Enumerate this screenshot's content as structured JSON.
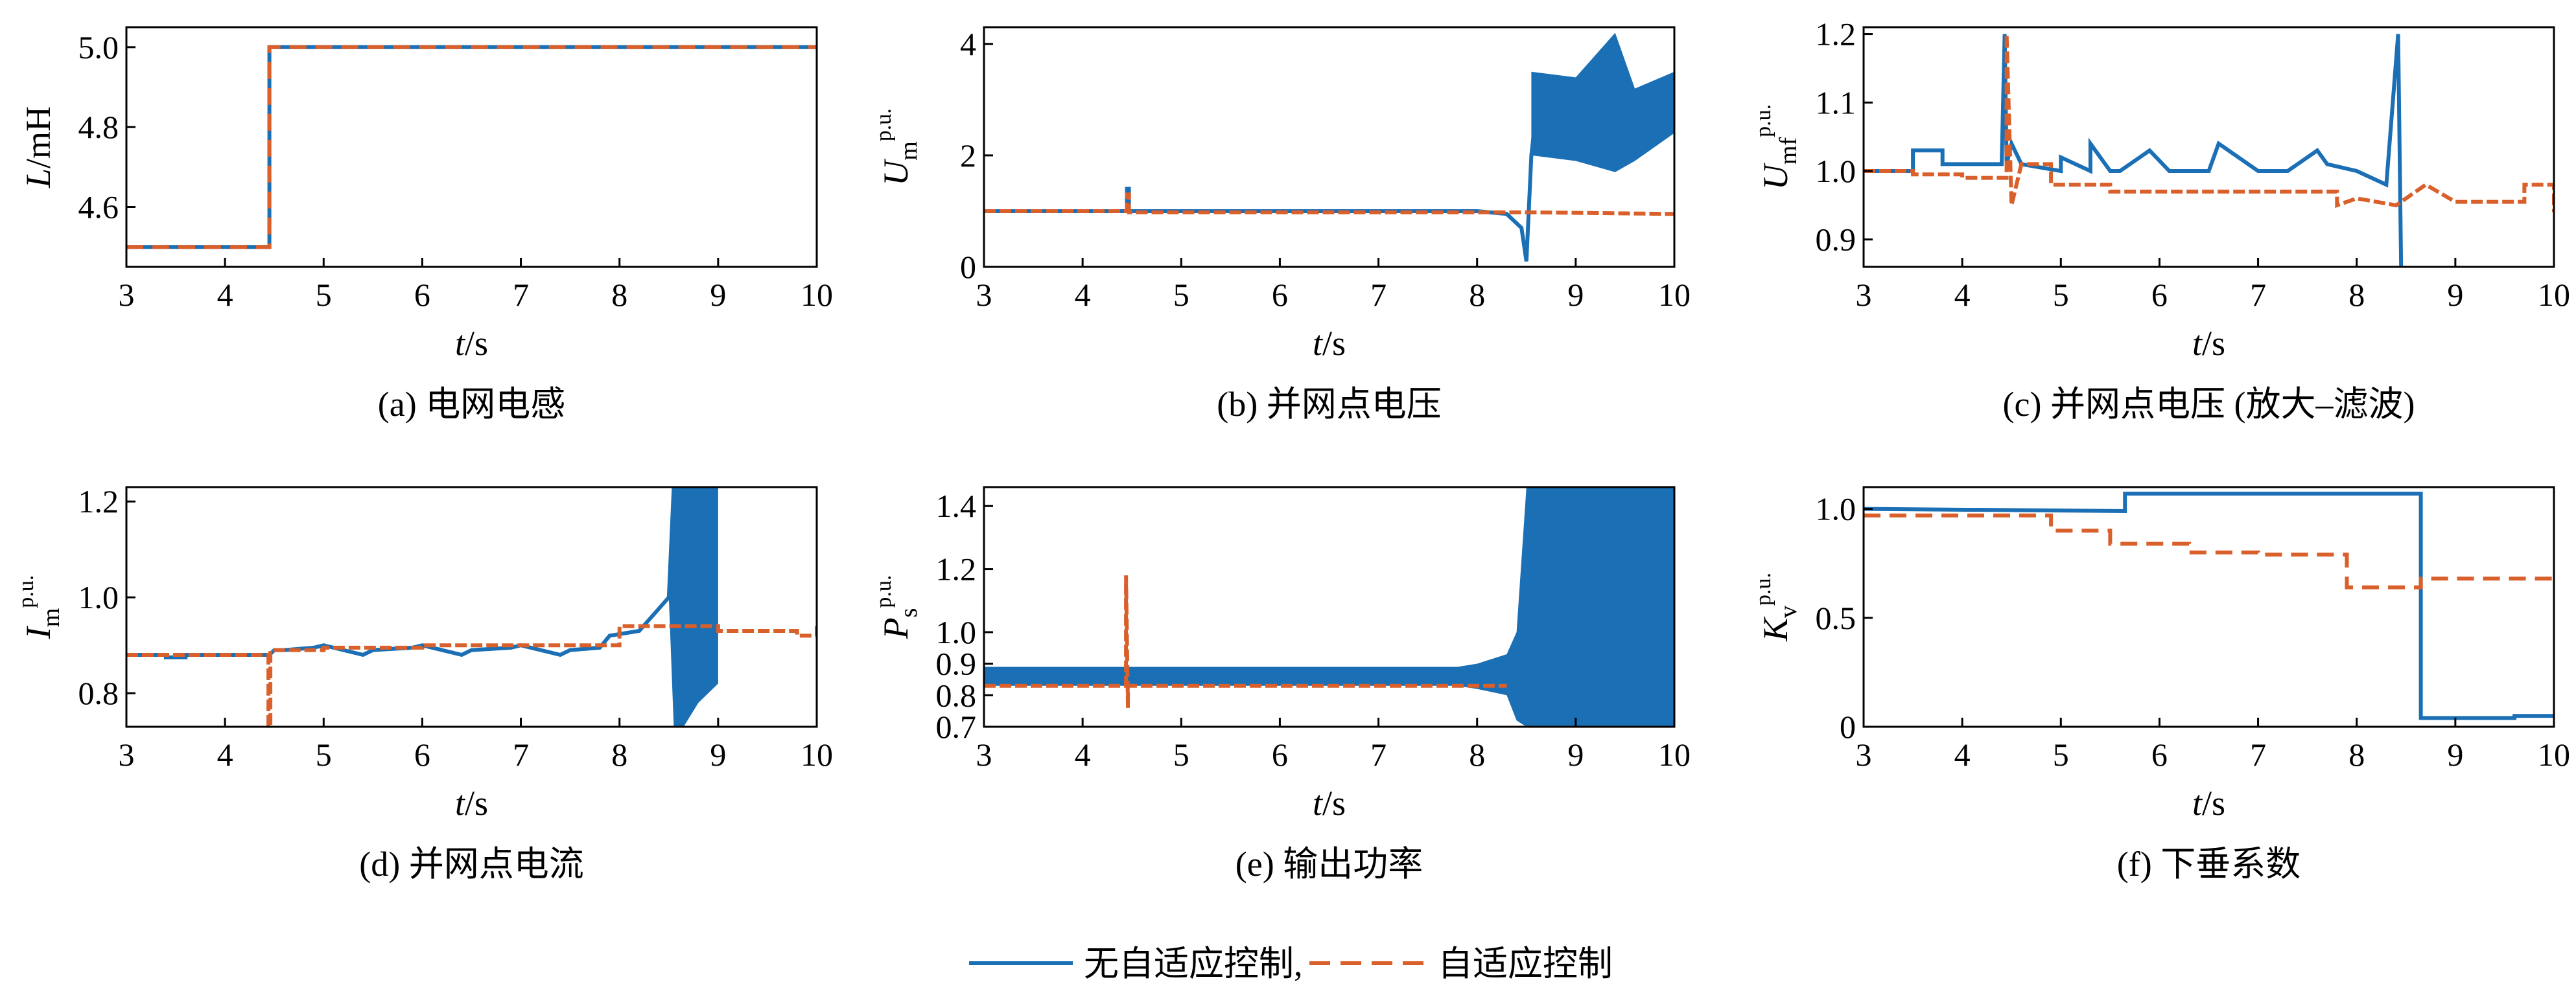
{
  "colors": {
    "no_adaptive": "#1a6fb5",
    "adaptive": "#d95f2b"
  },
  "legend": {
    "no_adaptive": "无自适应控制,",
    "adaptive": "自适应控制"
  },
  "chart_data": [
    {
      "id": "a",
      "type": "line",
      "caption": "(a)  电网电感",
      "ylabel": {
        "sym": "L",
        "sup": "",
        "sub": "",
        "unit": "/mH"
      },
      "xlabel": {
        "sym": "t",
        "unit": "/s"
      },
      "xlim": [
        3,
        10
      ],
      "ylim": [
        4.45,
        5.05
      ],
      "xticks": [
        "3",
        "4",
        "5",
        "6",
        "7",
        "8",
        "9",
        "10"
      ],
      "yticks": [
        {
          "v": 4.6,
          "l": "4.6"
        },
        {
          "v": 4.8,
          "l": "4.8"
        },
        {
          "v": 5.0,
          "l": "5.0"
        }
      ],
      "series": [
        {
          "key": "no_adaptive",
          "x": [
            3,
            4.45,
            4.45,
            10
          ],
          "y": [
            4.5,
            4.5,
            5.0,
            5.0
          ]
        },
        {
          "key": "adaptive",
          "dashed": true,
          "x": [
            3,
            4.45,
            4.45,
            10
          ],
          "y": [
            4.5,
            4.5,
            5.0,
            5.0
          ]
        }
      ]
    },
    {
      "id": "b",
      "type": "line",
      "caption": "(b)  并网点电压",
      "ylabel": {
        "sym": "U",
        "sup": "p.u.",
        "sub": "m",
        "unit": ""
      },
      "xlabel": {
        "sym": "t",
        "unit": "/s"
      },
      "xlim": [
        3,
        10
      ],
      "ylim": [
        0,
        4.3
      ],
      "xticks": [
        "3",
        "4",
        "5",
        "6",
        "7",
        "8",
        "9",
        "10"
      ],
      "yticks": [
        {
          "v": 0,
          "l": "0"
        },
        {
          "v": 2,
          "l": "2"
        },
        {
          "v": 4,
          "l": "4"
        }
      ],
      "series": [
        {
          "key": "no_adaptive",
          "x": [
            3,
            4.45,
            4.45,
            4.47,
            4.47,
            8.0,
            8.3,
            8.45,
            8.5,
            8.55,
            8.6,
            10
          ],
          "y": [
            1.0,
            1.0,
            1.4,
            1.4,
            1.0,
            1.0,
            0.95,
            0.7,
            0.1,
            2.0,
            2.8,
            2.8
          ],
          "bands": [
            {
              "x": [
                8.55,
                9.0,
                9.4,
                9.6,
                10
              ],
              "lo": [
                2.0,
                1.9,
                1.7,
                1.9,
                2.4
              ],
              "hi": [
                3.5,
                3.4,
                4.2,
                3.2,
                3.5
              ]
            }
          ]
        },
        {
          "key": "adaptive",
          "x": [
            3,
            4.45,
            4.45,
            4.47,
            4.47,
            8.5,
            10
          ],
          "y": [
            1.0,
            1.0,
            1.3,
            1.3,
            0.98,
            0.98,
            0.95
          ]
        }
      ]
    },
    {
      "id": "c",
      "type": "line",
      "caption": "(c)  并网点电压 (放大–滤波)",
      "ylabel": {
        "sym": "U",
        "sup": "p.u.",
        "sub": "mf",
        "unit": ""
      },
      "xlabel": {
        "sym": "t",
        "unit": "/s"
      },
      "xlim": [
        3,
        10
      ],
      "ylim": [
        0.86,
        1.21
      ],
      "xticks": [
        "3",
        "4",
        "5",
        "6",
        "7",
        "8",
        "9",
        "10"
      ],
      "yticks": [
        {
          "v": 0.9,
          "l": "0.9"
        },
        {
          "v": 1.0,
          "l": "1.0"
        },
        {
          "v": 1.1,
          "l": "1.1"
        },
        {
          "v": 1.2,
          "l": "1.2"
        }
      ],
      "series": [
        {
          "key": "no_adaptive",
          "x": [
            3,
            3.5,
            3.5,
            3.8,
            3.8,
            4.4,
            4.43,
            4.45,
            4.5,
            4.6,
            5.0,
            5.0,
            5.3,
            5.3,
            5.5,
            5.6,
            5.9,
            6.1,
            6.5,
            6.6,
            7.0,
            7.3,
            7.6,
            7.7,
            8.0,
            8.3,
            8.42,
            8.45
          ],
          "y": [
            1.0,
            1.0,
            1.03,
            1.03,
            1.01,
            1.01,
            1.2,
            1.01,
            1.04,
            1.01,
            1.0,
            1.02,
            1.0,
            1.04,
            1.0,
            1.0,
            1.03,
            1.0,
            1.0,
            1.04,
            1.0,
            1.0,
            1.03,
            1.01,
            1.0,
            0.98,
            1.2,
            0.86
          ]
        },
        {
          "key": "adaptive",
          "x": [
            3,
            3.5,
            3.5,
            4.0,
            4.0,
            4.45,
            4.45,
            4.5,
            4.6,
            4.9,
            4.9,
            5.5,
            5.5,
            6.3,
            6.3,
            7.2,
            7.2,
            7.8,
            7.8,
            8.0,
            8.4,
            8.4,
            8.7,
            8.7,
            9.0,
            9.0,
            9.7,
            9.7,
            10.0,
            10.0
          ],
          "y": [
            1.0,
            1.0,
            0.995,
            0.995,
            0.99,
            0.99,
            1.2,
            0.95,
            1.01,
            1.01,
            0.98,
            0.98,
            0.97,
            0.97,
            0.97,
            0.97,
            0.97,
            0.97,
            0.95,
            0.96,
            0.95,
            0.95,
            0.98,
            0.98,
            0.955,
            0.955,
            0.955,
            0.98,
            0.98,
            0.94
          ]
        }
      ]
    },
    {
      "id": "d",
      "type": "line",
      "caption": "(d)  并网点电流",
      "ylabel": {
        "sym": "I",
        "sup": "p.u.",
        "sub": "m",
        "unit": ""
      },
      "xlabel": {
        "sym": "t",
        "unit": "/s"
      },
      "xlim": [
        3,
        10
      ],
      "ylim": [
        0.73,
        1.23
      ],
      "xticks": [
        "3",
        "4",
        "5",
        "6",
        "7",
        "8",
        "9",
        "10"
      ],
      "yticks": [
        {
          "v": 0.8,
          "l": "0.8"
        },
        {
          "v": 1.0,
          "l": "1.0"
        },
        {
          "v": 1.2,
          "l": "1.2"
        }
      ],
      "series": [
        {
          "key": "no_adaptive",
          "x": [
            3,
            3.4,
            3.4,
            3.6,
            3.6,
            4.45,
            4.5,
            4.6,
            4.9,
            5.0,
            5.4,
            5.5,
            5.9,
            6.0,
            6.4,
            6.5,
            6.9,
            7.0,
            7.4,
            7.5,
            7.8,
            7.9,
            8.2,
            8.5,
            8.55
          ],
          "y": [
            0.88,
            0.88,
            0.875,
            0.875,
            0.88,
            0.88,
            0.89,
            0.89,
            0.895,
            0.9,
            0.88,
            0.89,
            0.895,
            0.9,
            0.88,
            0.89,
            0.895,
            0.9,
            0.88,
            0.89,
            0.895,
            0.92,
            0.93,
            1.0,
            1.23
          ],
          "bands": [
            {
              "x": [
                8.5,
                8.55,
                8.65,
                8.8,
                9.0
              ],
              "lo": [
                1.0,
                0.73,
                0.73,
                0.78,
                0.82
              ],
              "hi": [
                1.0,
                1.23,
                1.23,
                1.23,
                1.23
              ]
            }
          ]
        },
        {
          "key": "adaptive",
          "x": [
            3,
            4.44,
            4.44,
            4.46,
            4.46,
            5.0,
            5.0,
            6.0,
            6.0,
            7.0,
            7.0,
            8.0,
            8.0,
            9.0,
            9.0,
            9.8,
            9.8,
            10.0,
            10.0
          ],
          "y": [
            0.88,
            0.88,
            0.73,
            0.73,
            0.89,
            0.89,
            0.895,
            0.895,
            0.9,
            0.9,
            0.9,
            0.9,
            0.94,
            0.94,
            0.93,
            0.93,
            0.92,
            0.92,
            0.94
          ]
        }
      ]
    },
    {
      "id": "e",
      "type": "line",
      "caption": "(e)  输出功率",
      "ylabel": {
        "sym": "P",
        "sup": "p.u.",
        "sub": "s",
        "unit": ""
      },
      "xlabel": {
        "sym": "t",
        "unit": "/s"
      },
      "xlim": [
        3,
        10
      ],
      "ylim": [
        0.7,
        1.46
      ],
      "xticks": [
        "3",
        "4",
        "5",
        "6",
        "7",
        "8",
        "9",
        "10"
      ],
      "yticks": [
        {
          "v": 0.7,
          "l": "0.7"
        },
        {
          "v": 0.8,
          "l": "0.8"
        },
        {
          "v": 0.9,
          "l": "0.9"
        },
        {
          "v": 1.0,
          "l": "1.0"
        },
        {
          "v": 1.2,
          "l": "1.2"
        },
        {
          "v": 1.4,
          "l": "1.4"
        }
      ],
      "series": [
        {
          "key": "no_adaptive",
          "x": [
            3,
            10
          ],
          "y": [
            0.86,
            0.86
          ],
          "bands": [
            {
              "x": [
                3,
                7.8,
                8.0,
                8.3,
                8.4,
                8.5,
                10
              ],
              "lo": [
                0.83,
                0.83,
                0.82,
                0.8,
                0.72,
                0.7,
                0.7
              ],
              "hi": [
                0.89,
                0.89,
                0.9,
                0.93,
                1.0,
                1.46,
                1.46
              ]
            }
          ]
        },
        {
          "key": "adaptive",
          "x": [
            3,
            4.44,
            4.44,
            4.46,
            4.46,
            8.3
          ],
          "y": [
            0.83,
            0.83,
            1.18,
            0.76,
            0.83,
            0.83
          ]
        }
      ]
    },
    {
      "id": "f",
      "type": "line",
      "caption": "(f)  下垂系数",
      "ylabel": {
        "sym": "K",
        "sup": "p.u.",
        "sub": "v",
        "unit": ""
      },
      "xlabel": {
        "sym": "t",
        "unit": "/s"
      },
      "xlim": [
        3,
        10
      ],
      "ylim": [
        0,
        1.1
      ],
      "xticks": [
        "3",
        "4",
        "5",
        "6",
        "7",
        "8",
        "9",
        "10"
      ],
      "yticks": [
        {
          "v": 0,
          "l": "0"
        },
        {
          "v": 0.5,
          "l": "0.5"
        },
        {
          "v": 1.0,
          "l": "1.0"
        }
      ],
      "series": [
        {
          "key": "no_adaptive",
          "x": [
            3,
            5.65,
            5.65,
            8.65,
            8.65,
            9.6,
            9.6,
            10
          ],
          "y": [
            1.0,
            0.99,
            1.07,
            1.07,
            0.04,
            0.04,
            0.05,
            0.05
          ]
        },
        {
          "key": "adaptive",
          "dashed": true,
          "x": [
            3,
            4.9,
            4.9,
            5.5,
            5.5,
            6.3,
            6.3,
            7.0,
            7.0,
            7.9,
            7.9,
            8.65,
            8.65,
            9.3,
            9.3,
            10
          ],
          "y": [
            0.97,
            0.97,
            0.9,
            0.9,
            0.84,
            0.84,
            0.8,
            0.8,
            0.79,
            0.79,
            0.64,
            0.64,
            0.68,
            0.68,
            0.68,
            0.68
          ]
        }
      ]
    }
  ]
}
